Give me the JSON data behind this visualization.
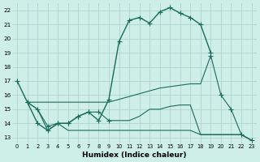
{
  "background_color": "#ceeee8",
  "grid_color": "#aacfc8",
  "line_color": "#1a6b5a",
  "xlabel": "Humidex (Indice chaleur)",
  "ylim_min": 12.6,
  "ylim_max": 22.5,
  "xlim_min": -0.5,
  "xlim_max": 23.5,
  "yticks": [
    13,
    14,
    15,
    16,
    17,
    18,
    19,
    20,
    21,
    22
  ],
  "xticks": [
    0,
    1,
    2,
    3,
    4,
    5,
    6,
    7,
    8,
    9,
    10,
    11,
    12,
    13,
    14,
    15,
    16,
    17,
    18,
    19,
    20,
    21,
    22,
    23
  ],
  "line1_x": [
    0,
    1,
    2,
    3,
    4,
    5,
    6,
    7,
    8,
    9,
    10,
    11,
    12,
    13,
    14,
    15,
    16,
    17,
    18,
    19
  ],
  "line1_y": [
    17.0,
    15.5,
    14.0,
    13.5,
    14.0,
    14.0,
    14.5,
    14.8,
    14.2,
    15.7,
    19.8,
    21.3,
    21.5,
    21.1,
    21.9,
    22.2,
    21.8,
    21.5,
    21.0,
    19.0
  ],
  "line2_x": [
    1,
    2,
    3,
    4,
    5,
    6,
    7,
    8,
    9,
    10,
    11,
    12,
    13,
    14,
    15,
    16,
    17,
    18,
    19,
    20,
    21,
    22,
    23
  ],
  "line2_y": [
    15.5,
    15.5,
    15.5,
    15.5,
    15.5,
    15.5,
    15.5,
    15.5,
    15.5,
    15.7,
    15.9,
    16.1,
    16.3,
    16.5,
    16.6,
    16.7,
    16.8,
    16.8,
    18.8,
    16.0,
    15.0,
    13.2,
    12.8
  ],
  "line3_x": [
    1,
    2,
    3,
    4,
    5,
    6,
    7,
    8,
    9,
    10,
    11,
    12,
    13,
    14,
    15,
    16,
    17,
    18,
    19,
    20,
    21,
    22,
    23
  ],
  "line3_y": [
    15.5,
    15.0,
    13.8,
    14.0,
    14.0,
    14.5,
    14.8,
    14.8,
    14.2,
    14.2,
    14.2,
    14.5,
    15.0,
    15.0,
    15.2,
    15.3,
    15.3,
    13.2,
    13.2,
    13.2,
    13.2,
    13.2,
    12.8
  ],
  "line4_x": [
    1,
    2,
    3,
    4,
    5,
    6,
    7,
    8,
    9,
    10,
    11,
    12,
    13,
    14,
    15,
    16,
    17,
    18,
    19,
    20,
    21,
    22,
    23
  ],
  "line4_y": [
    15.5,
    15.0,
    13.5,
    14.0,
    13.5,
    13.5,
    13.5,
    13.5,
    13.5,
    13.5,
    13.5,
    13.5,
    13.5,
    13.5,
    13.5,
    13.5,
    13.5,
    13.2,
    13.2,
    13.2,
    13.2,
    13.2,
    12.8
  ]
}
